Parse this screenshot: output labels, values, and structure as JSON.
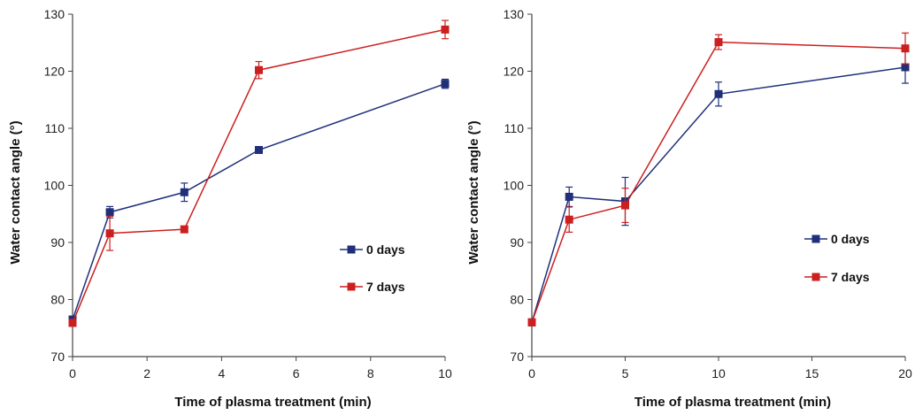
{
  "chart_data": [
    {
      "type": "line",
      "title": "",
      "xlabel": "Time of plasma treatment (min)",
      "ylabel": "Water contact angle (°)",
      "xlim": [
        0,
        10
      ],
      "ylim": [
        70,
        130
      ],
      "xticks": [
        0,
        2,
        4,
        6,
        8,
        10
      ],
      "yticks": [
        70,
        80,
        90,
        100,
        110,
        120,
        130
      ],
      "grid": false,
      "legend_position": "right",
      "series": [
        {
          "name": "0 days",
          "color": "#1f2f7a",
          "x": [
            0,
            1,
            3,
            5,
            10
          ],
          "y": [
            76.5,
            95.3,
            98.8,
            106.2,
            117.8
          ],
          "error": [
            0.5,
            1.0,
            1.6,
            0.5,
            0.8
          ]
        },
        {
          "name": "7 days",
          "color": "#cc1f1f",
          "x": [
            0,
            1,
            3,
            5,
            10
          ],
          "y": [
            75.9,
            91.6,
            92.3,
            120.2,
            127.3
          ],
          "error": [
            0.5,
            3.0,
            0.5,
            1.5,
            1.6
          ]
        }
      ]
    },
    {
      "type": "line",
      "title": "",
      "xlabel": "Time of plasma treatment (min)",
      "ylabel": "Water contact angle (°)",
      "xlim": [
        0,
        20
      ],
      "ylim": [
        70,
        130
      ],
      "xticks": [
        0,
        5,
        10,
        15,
        20
      ],
      "yticks": [
        70,
        80,
        90,
        100,
        110,
        120,
        130
      ],
      "grid": false,
      "legend_position": "right",
      "series": [
        {
          "name": "0 days",
          "color": "#1f2f7a",
          "x": [
            0,
            2,
            5,
            10,
            20
          ],
          "y": [
            76,
            98,
            97.2,
            116,
            120.7
          ],
          "error": [
            0.5,
            1.7,
            4.2,
            2.1,
            2.8
          ]
        },
        {
          "name": "7 days",
          "color": "#cc1f1f",
          "x": [
            0,
            2,
            5,
            10,
            20
          ],
          "y": [
            76,
            94,
            96.5,
            125.1,
            124
          ],
          "error": [
            0.5,
            2.2,
            3.0,
            1.3,
            2.7
          ]
        }
      ]
    }
  ]
}
